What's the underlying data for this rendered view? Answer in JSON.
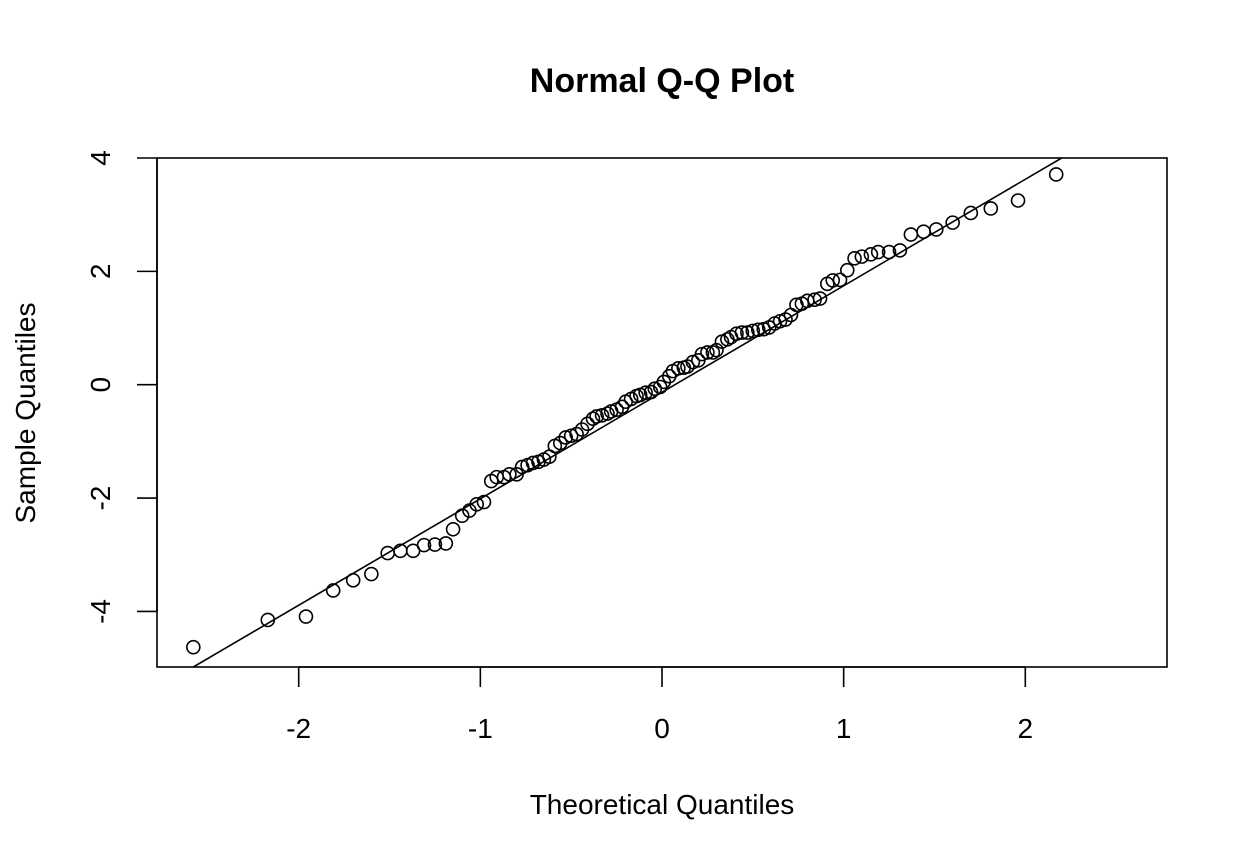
{
  "chart_data": {
    "type": "scatter",
    "title": "Normal Q-Q Plot",
    "xlabel": "Theoretical Quantiles",
    "ylabel": "Sample Quantiles",
    "xlim": [
      -2.78,
      2.78
    ],
    "ylim": [
      -4.98,
      4.0
    ],
    "xticks": [
      -2,
      -1,
      0,
      1,
      2
    ],
    "yticks": [
      -4,
      -2,
      0,
      2,
      4
    ],
    "grid": false,
    "marker": "open-circle",
    "reference_line": {
      "p1": [
        -2.58,
        -4.98
      ],
      "p2": [
        2.2,
        4.0
      ]
    },
    "points": [
      [
        -2.58,
        -4.63
      ],
      [
        -2.17,
        -4.15
      ],
      [
        -1.96,
        -4.09
      ],
      [
        -1.81,
        -3.63
      ],
      [
        -1.7,
        -3.45
      ],
      [
        -1.6,
        -3.34
      ],
      [
        -1.51,
        -2.97
      ],
      [
        -1.44,
        -2.93
      ],
      [
        -1.37,
        -2.93
      ],
      [
        -1.31,
        -2.83
      ],
      [
        -1.25,
        -2.82
      ],
      [
        -1.19,
        -2.8
      ],
      [
        -1.15,
        -2.55
      ],
      [
        -1.1,
        -2.31
      ],
      [
        -1.06,
        -2.22
      ],
      [
        -1.02,
        -2.11
      ],
      [
        -0.98,
        -2.07
      ],
      [
        -0.94,
        -1.7
      ],
      [
        -0.91,
        -1.63
      ],
      [
        -0.87,
        -1.63
      ],
      [
        -0.84,
        -1.58
      ],
      [
        -0.8,
        -1.58
      ],
      [
        -0.77,
        -1.45
      ],
      [
        -0.74,
        -1.42
      ],
      [
        -0.71,
        -1.38
      ],
      [
        -0.68,
        -1.36
      ],
      [
        -0.65,
        -1.32
      ],
      [
        -0.62,
        -1.27
      ],
      [
        -0.59,
        -1.08
      ],
      [
        -0.56,
        -1.03
      ],
      [
        -0.53,
        -0.93
      ],
      [
        -0.5,
        -0.9
      ],
      [
        -0.47,
        -0.87
      ],
      [
        -0.44,
        -0.79
      ],
      [
        -0.41,
        -0.69
      ],
      [
        -0.38,
        -0.6
      ],
      [
        -0.36,
        -0.56
      ],
      [
        -0.33,
        -0.54
      ],
      [
        -0.3,
        -0.51
      ],
      [
        -0.28,
        -0.47
      ],
      [
        -0.25,
        -0.44
      ],
      [
        -0.22,
        -0.39
      ],
      [
        -0.2,
        -0.3
      ],
      [
        -0.17,
        -0.25
      ],
      [
        -0.14,
        -0.2
      ],
      [
        -0.12,
        -0.18
      ],
      [
        -0.09,
        -0.14
      ],
      [
        -0.06,
        -0.13
      ],
      [
        -0.04,
        -0.07
      ],
      [
        -0.01,
        -0.04
      ],
      [
        0.01,
        0.05
      ],
      [
        0.04,
        0.15
      ],
      [
        0.06,
        0.24
      ],
      [
        0.09,
        0.29
      ],
      [
        0.12,
        0.3
      ],
      [
        0.14,
        0.32
      ],
      [
        0.17,
        0.4
      ],
      [
        0.2,
        0.43
      ],
      [
        0.22,
        0.54
      ],
      [
        0.25,
        0.57
      ],
      [
        0.28,
        0.57
      ],
      [
        0.3,
        0.61
      ],
      [
        0.33,
        0.76
      ],
      [
        0.36,
        0.8
      ],
      [
        0.38,
        0.84
      ],
      [
        0.41,
        0.9
      ],
      [
        0.44,
        0.92
      ],
      [
        0.47,
        0.92
      ],
      [
        0.5,
        0.95
      ],
      [
        0.53,
        0.97
      ],
      [
        0.56,
        0.98
      ],
      [
        0.59,
        1.01
      ],
      [
        0.62,
        1.08
      ],
      [
        0.65,
        1.12
      ],
      [
        0.68,
        1.15
      ],
      [
        0.71,
        1.23
      ],
      [
        0.74,
        1.41
      ],
      [
        0.77,
        1.43
      ],
      [
        0.8,
        1.48
      ],
      [
        0.84,
        1.5
      ],
      [
        0.87,
        1.52
      ],
      [
        0.91,
        1.78
      ],
      [
        0.94,
        1.84
      ],
      [
        0.98,
        1.85
      ],
      [
        1.02,
        2.02
      ],
      [
        1.06,
        2.23
      ],
      [
        1.1,
        2.26
      ],
      [
        1.15,
        2.3
      ],
      [
        1.19,
        2.34
      ],
      [
        1.25,
        2.34
      ],
      [
        1.31,
        2.37
      ],
      [
        1.37,
        2.65
      ],
      [
        1.44,
        2.7
      ],
      [
        1.51,
        2.74
      ],
      [
        1.6,
        2.86
      ],
      [
        1.7,
        3.03
      ],
      [
        1.81,
        3.11
      ],
      [
        1.96,
        3.25
      ],
      [
        2.17,
        3.71
      ]
    ]
  }
}
